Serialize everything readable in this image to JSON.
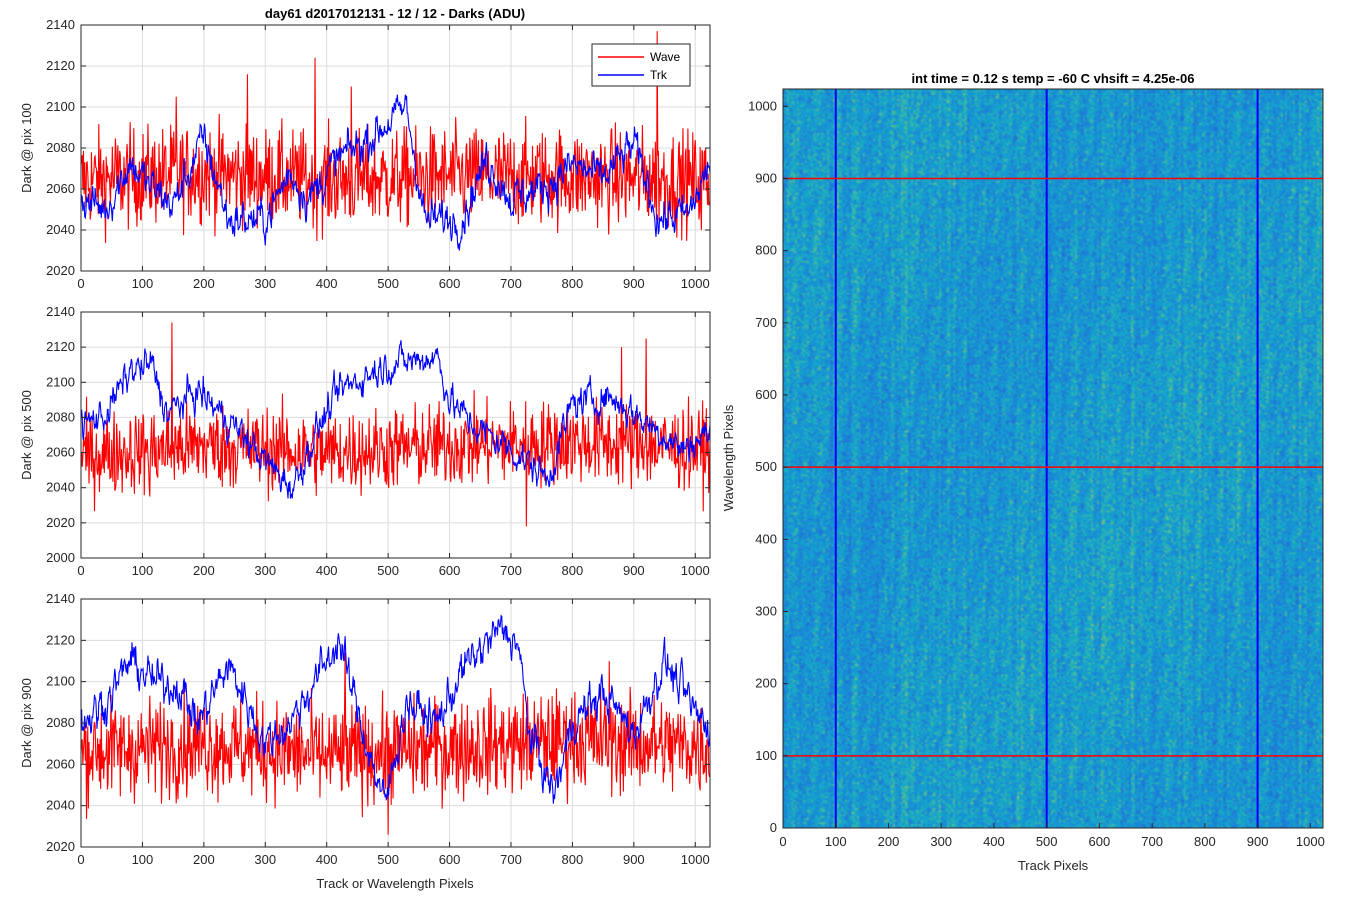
{
  "figure": {
    "title": "day61 d2017012131 - 12 / 12 - Darks (ADU)"
  },
  "colors": {
    "wave": "#ff0000",
    "trk": "#0000ff",
    "grid": "#dcdcdc",
    "axes": "#262626"
  },
  "chart_data": [
    {
      "id": "panel-pix100",
      "type": "line",
      "ylabel": "Dark @ pix 100",
      "xlabel": "",
      "xlim": [
        0,
        1024
      ],
      "ylim": [
        2020,
        2140
      ],
      "xticks": [
        0,
        100,
        200,
        300,
        400,
        500,
        600,
        700,
        800,
        900,
        1000
      ],
      "yticks": [
        2020,
        2040,
        2060,
        2080,
        2100,
        2120,
        2140
      ],
      "grid": true,
      "legend": "top-right",
      "series": [
        {
          "name": "Wave",
          "color": "#ff0000",
          "mean": 2066,
          "noise": 12,
          "min": 2025,
          "max": 2137,
          "trend": [
            [
              0,
              2064
            ],
            [
              200,
              2068
            ],
            [
              400,
              2064
            ],
            [
              600,
              2066
            ],
            [
              800,
              2066
            ],
            [
              1024,
              2064
            ]
          ],
          "spikes": [
            [
              155,
              2105
            ],
            [
              271,
              2116
            ],
            [
              381,
              2124
            ],
            [
              440,
              2110
            ],
            [
              938,
              2137
            ],
            [
              1010,
              2040
            ]
          ]
        },
        {
          "name": "Trk",
          "color": "#0000ff",
          "mean": 2062,
          "noise": 5,
          "min": 2030,
          "max": 2106,
          "trend": [
            [
              0,
              2055
            ],
            [
              40,
              2050
            ],
            [
              80,
              2073
            ],
            [
              110,
              2062
            ],
            [
              150,
              2052
            ],
            [
              200,
              2085
            ],
            [
              240,
              2045
            ],
            [
              300,
              2045
            ],
            [
              340,
              2068
            ],
            [
              370,
              2055
            ],
            [
              420,
              2075
            ],
            [
              470,
              2085
            ],
            [
              530,
              2100
            ],
            [
              560,
              2045
            ],
            [
              620,
              2045
            ],
            [
              660,
              2075
            ],
            [
              700,
              2055
            ],
            [
              760,
              2062
            ],
            [
              800,
              2072
            ],
            [
              850,
              2065
            ],
            [
              900,
              2082
            ],
            [
              940,
              2045
            ],
            [
              990,
              2048
            ],
            [
              1024,
              2072
            ]
          ]
        }
      ]
    },
    {
      "id": "panel-pix500",
      "type": "line",
      "ylabel": "Dark @ pix 500",
      "xlabel": "",
      "xlim": [
        0,
        1024
      ],
      "ylim": [
        2000,
        2140
      ],
      "xticks": [
        0,
        100,
        200,
        300,
        400,
        500,
        600,
        700,
        800,
        900,
        1000
      ],
      "yticks": [
        2000,
        2020,
        2040,
        2060,
        2080,
        2100,
        2120,
        2140
      ],
      "grid": true,
      "legend": "none",
      "series": [
        {
          "name": "Wave",
          "color": "#ff0000",
          "mean": 2062,
          "noise": 12,
          "min": 2018,
          "max": 2134,
          "trend": [
            [
              0,
              2058
            ],
            [
              200,
              2064
            ],
            [
              400,
              2060
            ],
            [
              600,
              2064
            ],
            [
              800,
              2066
            ],
            [
              1024,
              2062
            ]
          ],
          "spikes": [
            [
              148,
              2134
            ],
            [
              112,
              2035
            ],
            [
              725,
              2018
            ],
            [
              920,
              2125
            ],
            [
              880,
              2120
            ]
          ]
        },
        {
          "name": "Trk",
          "color": "#0000ff",
          "mean": 2075,
          "noise": 5,
          "min": 2033,
          "max": 2124,
          "trend": [
            [
              0,
              2075
            ],
            [
              40,
              2082
            ],
            [
              80,
              2106
            ],
            [
              115,
              2110
            ],
            [
              140,
              2082
            ],
            [
              190,
              2095
            ],
            [
              220,
              2085
            ],
            [
              250,
              2075
            ],
            [
              300,
              2055
            ],
            [
              345,
              2040
            ],
            [
              380,
              2070
            ],
            [
              420,
              2095
            ],
            [
              470,
              2105
            ],
            [
              500,
              2110
            ],
            [
              580,
              2115
            ],
            [
              600,
              2090
            ],
            [
              640,
              2075
            ],
            [
              700,
              2062
            ],
            [
              760,
              2045
            ],
            [
              800,
              2088
            ],
            [
              860,
              2092
            ],
            [
              930,
              2075
            ],
            [
              980,
              2062
            ],
            [
              1024,
              2072
            ]
          ]
        }
      ]
    },
    {
      "id": "panel-pix900",
      "type": "line",
      "ylabel": "Dark @ pix 900",
      "xlabel": "Track or Wavelength Pixels",
      "xlim": [
        0,
        1024
      ],
      "ylim": [
        2020,
        2140
      ],
      "xticks": [
        0,
        100,
        200,
        300,
        400,
        500,
        600,
        700,
        800,
        900,
        1000
      ],
      "yticks": [
        2020,
        2040,
        2060,
        2080,
        2100,
        2120,
        2140
      ],
      "grid": true,
      "legend": "none",
      "series": [
        {
          "name": "Wave",
          "color": "#ff0000",
          "mean": 2068,
          "noise": 12,
          "min": 2026,
          "max": 2114,
          "trend": [
            [
              0,
              2066
            ],
            [
              200,
              2070
            ],
            [
              400,
              2064
            ],
            [
              600,
              2068
            ],
            [
              800,
              2072
            ],
            [
              1024,
              2068
            ]
          ],
          "spikes": [
            [
              430,
              2114
            ],
            [
              500,
              2026
            ],
            [
              860,
              2110
            ]
          ]
        },
        {
          "name": "Trk",
          "color": "#0000ff",
          "mean": 2085,
          "noise": 5,
          "min": 2031,
          "max": 2133,
          "trend": [
            [
              0,
              2080
            ],
            [
              40,
              2090
            ],
            [
              80,
              2110
            ],
            [
              120,
              2100
            ],
            [
              160,
              2098
            ],
            [
              190,
              2080
            ],
            [
              240,
              2108
            ],
            [
              270,
              2090
            ],
            [
              300,
              2070
            ],
            [
              340,
              2080
            ],
            [
              370,
              2095
            ],
            [
              420,
              2120
            ],
            [
              460,
              2075
            ],
            [
              495,
              2040
            ],
            [
              530,
              2090
            ],
            [
              580,
              2080
            ],
            [
              620,
              2105
            ],
            [
              680,
              2125
            ],
            [
              710,
              2120
            ],
            [
              730,
              2075
            ],
            [
              770,
              2045
            ],
            [
              800,
              2080
            ],
            [
              850,
              2095
            ],
            [
              900,
              2075
            ],
            [
              950,
              2110
            ],
            [
              1000,
              2085
            ],
            [
              1024,
              2078
            ]
          ]
        }
      ]
    },
    {
      "id": "image-darks",
      "type": "heatmap",
      "title": "int time = 0.12 s    temp = -60 C    vhsift = 4.25e-06",
      "xlabel": "Track Pixels",
      "ylabel": "Wavelength Pixels",
      "xlim": [
        0,
        1024
      ],
      "ylim": [
        0,
        1024
      ],
      "xticks": [
        0,
        100,
        200,
        300,
        400,
        500,
        600,
        700,
        800,
        900,
        1000
      ],
      "yticks": [
        0,
        100,
        200,
        300,
        400,
        500,
        600,
        700,
        800,
        900,
        1000
      ],
      "colormap": "parula",
      "base_color": "#1f96d6",
      "vertical_lines": {
        "color": "#0000ff",
        "x": [
          100,
          500,
          900
        ]
      },
      "horizontal_lines": {
        "color": "#ff0000",
        "y": [
          100,
          500,
          900
        ]
      }
    }
  ]
}
